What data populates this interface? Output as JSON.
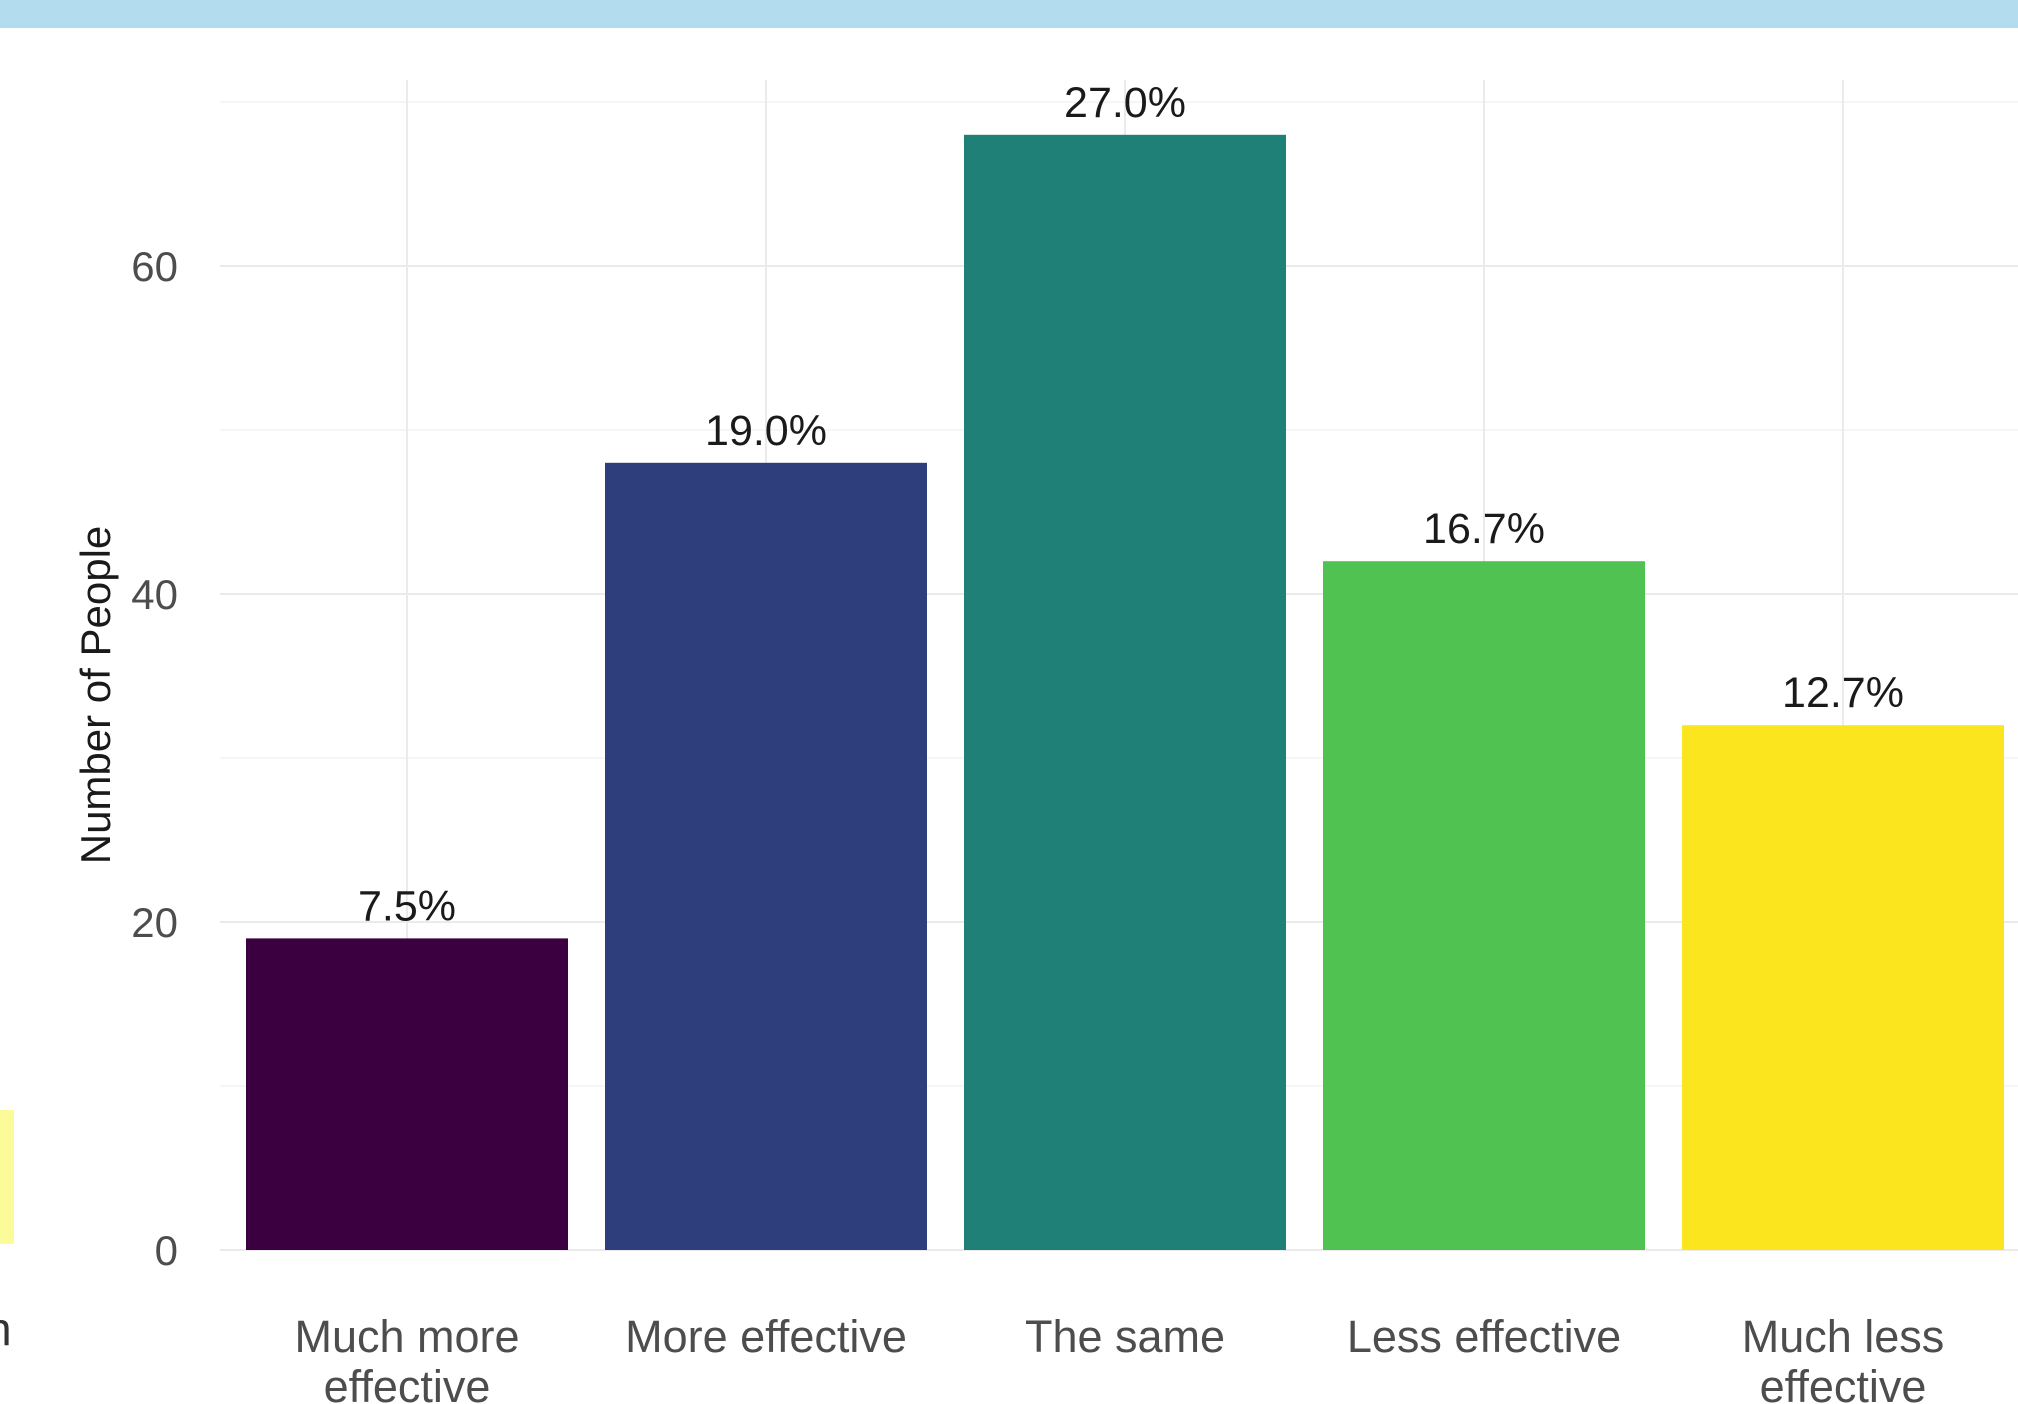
{
  "chart_data": {
    "type": "bar",
    "categories": [
      "Much more effective",
      "More effective",
      "The same",
      "Less effective",
      "Much less effective"
    ],
    "category_lines": [
      [
        "Much more",
        "effective"
      ],
      [
        "More effective"
      ],
      [
        "The same"
      ],
      [
        "Less effective"
      ],
      [
        "Much less",
        "effective"
      ]
    ],
    "values": [
      19,
      48,
      68,
      42,
      32
    ],
    "percent_labels": [
      "7.5%",
      "19.0%",
      "27.0%",
      "16.7%",
      "12.7%"
    ],
    "colors": [
      "#3a0040",
      "#2e3e7d",
      "#1e8077",
      "#4fc251",
      "#fae51e"
    ],
    "title": "",
    "xlabel": "",
    "ylabel": "Number of People",
    "yticks": [
      0,
      20,
      40,
      60
    ],
    "ylim": [
      0,
      70
    ],
    "grid": true,
    "legend": "none"
  },
  "left_fragment": {
    "text": "h",
    "color": "#fbfb9a"
  }
}
